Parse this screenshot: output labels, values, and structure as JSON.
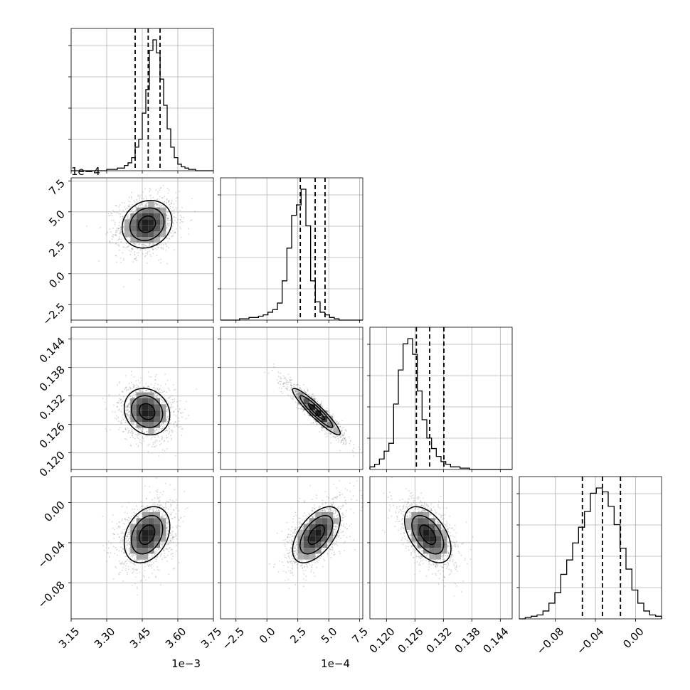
{
  "chart_data": {
    "type": "corner",
    "grid": true,
    "parameters": [
      {
        "range": [
          3.15,
          3.75
        ],
        "ticks": [
          3.15,
          3.3,
          3.45,
          3.6,
          3.75
        ],
        "tick_labels": [
          "3.15",
          "3.30",
          "3.45",
          "3.60",
          "3.75"
        ],
        "offset_label": "1e−3",
        "quantiles": [
          3.42,
          3.475,
          3.525
        ],
        "histogram": [
          0,
          0,
          0,
          0,
          0,
          0,
          0,
          0,
          0,
          0,
          1,
          1,
          1,
          2,
          2,
          4,
          6,
          10,
          18,
          24,
          44,
          62,
          92,
          100,
          90,
          70,
          50,
          32,
          18,
          10,
          5,
          3,
          2,
          1,
          1,
          0,
          0,
          0,
          0,
          0
        ]
      },
      {
        "range": [
          -3.75,
          7.75
        ],
        "ticks": [
          -2.5,
          0.0,
          2.5,
          5.0,
          7.5
        ],
        "tick_labels": [
          "−2.5",
          "0.0",
          "2.5",
          "5.0",
          "7.5"
        ],
        "offset_label": "1e−4",
        "quantiles": [
          2.7,
          3.9,
          4.7
        ],
        "histogram": [
          0,
          0,
          0,
          0,
          1,
          1,
          2,
          2,
          3,
          4,
          6,
          8,
          13,
          30,
          55,
          80,
          88,
          100,
          72,
          30,
          14,
          6,
          4,
          2,
          1,
          0,
          0,
          0,
          0,
          0
        ]
      },
      {
        "range": [
          0.1165,
          0.1465
        ],
        "ticks": [
          0.12,
          0.126,
          0.132,
          0.138,
          0.144
        ],
        "tick_labels": [
          "0.120",
          "0.126",
          "0.132",
          "0.138",
          "0.144"
        ],
        "offset_label": "",
        "quantiles": [
          0.1263,
          0.1291,
          0.1321
        ],
        "histogram": [
          2,
          4,
          8,
          14,
          20,
          50,
          76,
          96,
          100,
          88,
          60,
          38,
          24,
          16,
          10,
          6,
          4,
          2,
          2,
          1,
          1,
          0,
          0,
          0,
          0,
          0,
          0,
          0,
          0,
          0
        ]
      },
      {
        "range": [
          -0.116,
          0.026
        ],
        "ticks": [
          -0.08,
          -0.04,
          0.0
        ],
        "tick_labels": [
          "−0.08",
          "−0.04",
          "0.00"
        ],
        "offset_label": "",
        "quantiles": [
          -0.053,
          -0.033,
          -0.015
        ],
        "histogram": [
          0,
          1,
          2,
          3,
          6,
          12,
          20,
          34,
          45,
          58,
          70,
          82,
          96,
          100,
          97,
          86,
          72,
          54,
          38,
          22,
          12,
          6,
          3,
          2
        ]
      }
    ],
    "pairs": [
      {
        "row": 1,
        "col": 0,
        "mean": [
          3.47,
          4.0
        ],
        "sd": [
          0.06,
          1.1
        ],
        "corr": 0.15
      },
      {
        "row": 2,
        "col": 0,
        "mean": [
          3.47,
          0.1287
        ],
        "sd": [
          0.055,
          0.0028
        ],
        "corr": -0.15
      },
      {
        "row": 2,
        "col": 1,
        "mean": [
          4.0,
          0.1287
        ],
        "sd": [
          1.1,
          0.0028
        ],
        "corr": -0.93
      },
      {
        "row": 3,
        "col": 0,
        "mean": [
          3.47,
          -0.032
        ],
        "sd": [
          0.055,
          0.016
        ],
        "corr": 0.3
      },
      {
        "row": 3,
        "col": 1,
        "mean": [
          4.0,
          -0.032
        ],
        "sd": [
          1.1,
          0.016
        ],
        "corr": 0.55
      },
      {
        "row": 3,
        "col": 2,
        "mean": [
          0.1287,
          -0.032
        ],
        "sd": [
          0.0028,
          0.016
        ],
        "corr": -0.5
      }
    ]
  }
}
